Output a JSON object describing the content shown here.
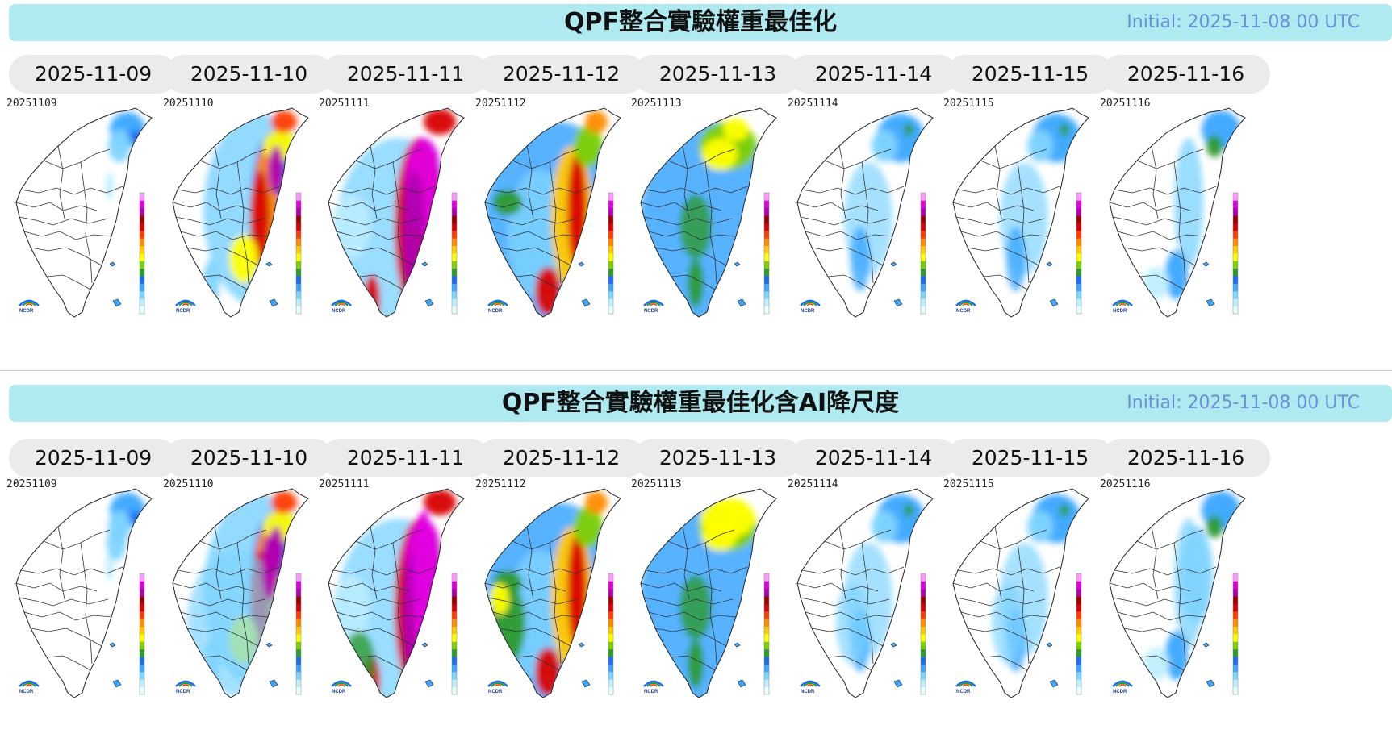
{
  "sections": [
    {
      "title": "QPF整合實驗權重最佳化",
      "initial": "Initial: 2025-11-08 00 UTC",
      "dates": [
        "2025-11-09",
        "2025-11-10",
        "2025-11-11",
        "2025-11-12",
        "2025-11-13",
        "2025-11-14",
        "2025-11-15",
        "2025-11-16"
      ],
      "map_labels": [
        "20251109",
        "20251110",
        "20251111",
        "20251112",
        "20251113",
        "20251114",
        "20251115",
        "20251116"
      ],
      "intensity": [
        "light-north",
        "strong-east",
        "extreme-east",
        "heavy-central",
        "moderate-north",
        "light-scattered",
        "light-scattered",
        "light-east"
      ]
    },
    {
      "title": "QPF整合實驗權重最佳化含AI降尺度",
      "initial": "Initial: 2025-11-08 00 UTC",
      "dates": [
        "2025-11-09",
        "2025-11-10",
        "2025-11-11",
        "2025-11-12",
        "2025-11-13",
        "2025-11-14",
        "2025-11-15",
        "2025-11-16"
      ],
      "map_labels": [
        "20251109",
        "20251110",
        "20251111",
        "20251112",
        "20251113",
        "20251114",
        "20251115",
        "20251116"
      ],
      "intensity": [
        "light-north",
        "strong-east",
        "extreme-east",
        "heavy-central",
        "moderate-north",
        "light-scattered",
        "light-scattered",
        "light-east"
      ]
    }
  ],
  "logo_text": "NCDR",
  "colors": {
    "banner_bg": "#aeeaf0",
    "initial_text": "#6a8fd8",
    "tab_bg": "#ebebeb",
    "colorbar": [
      "#e8ffff",
      "#bfefff",
      "#7fd4ff",
      "#3aa6ff",
      "#1c6cf0",
      "#2e9b2e",
      "#7fd000",
      "#ffff00",
      "#ffc800",
      "#ff8c00",
      "#ff3c00",
      "#d80000",
      "#9a0000",
      "#b000b0",
      "#e000e0",
      "#ff99ff"
    ]
  }
}
